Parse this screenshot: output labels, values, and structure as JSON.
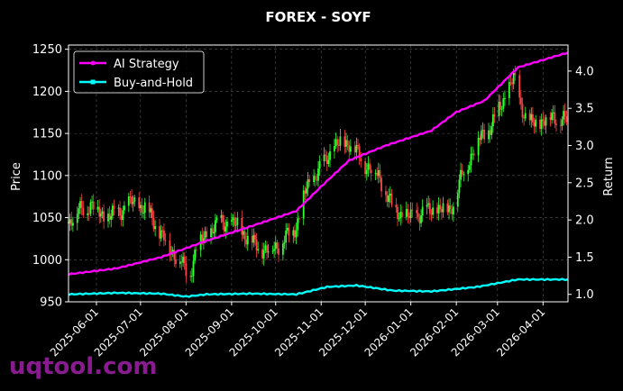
{
  "chart_data": {
    "type": "candlestick+line",
    "title": "FOREX - SOYF",
    "ylabel_left": "Price",
    "ylabel_right": "Return",
    "ylim_left": [
      950,
      1255
    ],
    "ylim_right": [
      0.9,
      4.35
    ],
    "yticks_left": [
      950,
      1000,
      1050,
      1100,
      1150,
      1200,
      1250
    ],
    "yticks_right": [
      1.0,
      1.5,
      2.0,
      2.5,
      3.0,
      3.5,
      4.0
    ],
    "ytick_labels_left": [
      "950",
      "1000",
      "1050",
      "1100",
      "1150",
      "1200",
      "1250"
    ],
    "ytick_labels_right": [
      "1.0",
      "1.5",
      "2.0",
      "2.5",
      "3.0",
      "3.5",
      "4.0"
    ],
    "xlim": [
      "2025-05-13",
      "2026-04-18"
    ],
    "xtick_dates": [
      "2025-06-01",
      "2025-07-01",
      "2025-08-01",
      "2025-09-01",
      "2025-10-01",
      "2025-11-01",
      "2025-12-01",
      "2026-01-01",
      "2026-02-01",
      "2026-03-01",
      "2026-04-01"
    ],
    "xtick_labels": [
      "2025-06-01",
      "2025-07-01",
      "2025-08-01",
      "2025-09-01",
      "2025-10-01",
      "2025-11-01",
      "2025-12-01",
      "2026-01-01",
      "2026-02-01",
      "2026-03-01",
      "2026-04-01"
    ],
    "grid": true,
    "legend_position": "top-left",
    "colors": {
      "up": "#33ff33",
      "down": "#ff4444",
      "ai": "#ff00ff",
      "bh": "#00ffff",
      "grid": "#555555",
      "axis": "#ffffff"
    },
    "price_close_path": [
      [
        "2025-05-13",
        1045
      ],
      [
        "2025-05-20",
        1058
      ],
      [
        "2025-05-28",
        1065
      ],
      [
        "2025-06-08",
        1050
      ],
      [
        "2025-06-15",
        1055
      ],
      [
        "2025-06-25",
        1068
      ],
      [
        "2025-07-05",
        1060
      ],
      [
        "2025-07-12",
        1040
      ],
      [
        "2025-07-20",
        1015
      ],
      [
        "2025-07-28",
        1000
      ],
      [
        "2025-08-03",
        978
      ],
      [
        "2025-08-08",
        1015
      ],
      [
        "2025-08-15",
        1030
      ],
      [
        "2025-08-25",
        1045
      ],
      [
        "2025-09-05",
        1040
      ],
      [
        "2025-09-15",
        1020
      ],
      [
        "2025-09-25",
        1010
      ],
      [
        "2025-10-05",
        1020
      ],
      [
        "2025-10-15",
        1040
      ],
      [
        "2025-10-22",
        1085
      ],
      [
        "2025-11-01",
        1110
      ],
      [
        "2025-11-10",
        1135
      ],
      [
        "2025-11-20",
        1140
      ],
      [
        "2025-11-30",
        1115
      ],
      [
        "2025-12-10",
        1100
      ],
      [
        "2025-12-20",
        1060
      ],
      [
        "2025-12-30",
        1050
      ],
      [
        "2026-01-08",
        1055
      ],
      [
        "2026-01-18",
        1060
      ],
      [
        "2026-01-28",
        1060
      ],
      [
        "2026-02-05",
        1100
      ],
      [
        "2026-02-15",
        1140
      ],
      [
        "2026-02-25",
        1160
      ],
      [
        "2026-03-05",
        1190
      ],
      [
        "2026-03-12",
        1215
      ],
      [
        "2026-03-15",
        1195
      ],
      [
        "2026-03-22",
        1160
      ],
      [
        "2026-04-01",
        1165
      ],
      [
        "2026-04-08",
        1170
      ],
      [
        "2026-04-18",
        1165
      ]
    ],
    "series": [
      {
        "name": "AI Strategy",
        "points": [
          [
            "2025-05-13",
            1.27
          ],
          [
            "2025-06-15",
            1.35
          ],
          [
            "2025-07-15",
            1.5
          ],
          [
            "2025-08-15",
            1.72
          ],
          [
            "2025-09-15",
            1.92
          ],
          [
            "2025-10-15",
            2.12
          ],
          [
            "2025-11-01",
            2.45
          ],
          [
            "2025-11-20",
            2.8
          ],
          [
            "2025-12-15",
            3.0
          ],
          [
            "2026-01-15",
            3.2
          ],
          [
            "2026-02-01",
            3.45
          ],
          [
            "2026-02-20",
            3.6
          ],
          [
            "2026-03-15",
            4.05
          ],
          [
            "2026-04-01",
            4.15
          ],
          [
            "2026-04-18",
            4.25
          ]
        ]
      },
      {
        "name": "Buy-and-Hold",
        "points": [
          [
            "2025-05-13",
            1.0
          ],
          [
            "2025-06-15",
            1.02
          ],
          [
            "2025-07-15",
            1.01
          ],
          [
            "2025-08-01",
            0.97
          ],
          [
            "2025-08-15",
            1.0
          ],
          [
            "2025-09-15",
            1.01
          ],
          [
            "2025-10-15",
            1.0
          ],
          [
            "2025-11-05",
            1.1
          ],
          [
            "2025-11-25",
            1.12
          ],
          [
            "2025-12-20",
            1.05
          ],
          [
            "2026-01-15",
            1.04
          ],
          [
            "2026-02-15",
            1.1
          ],
          [
            "2026-03-15",
            1.2
          ],
          [
            "2026-04-18",
            1.2
          ]
        ]
      }
    ]
  },
  "watermark": "uqtool.com"
}
